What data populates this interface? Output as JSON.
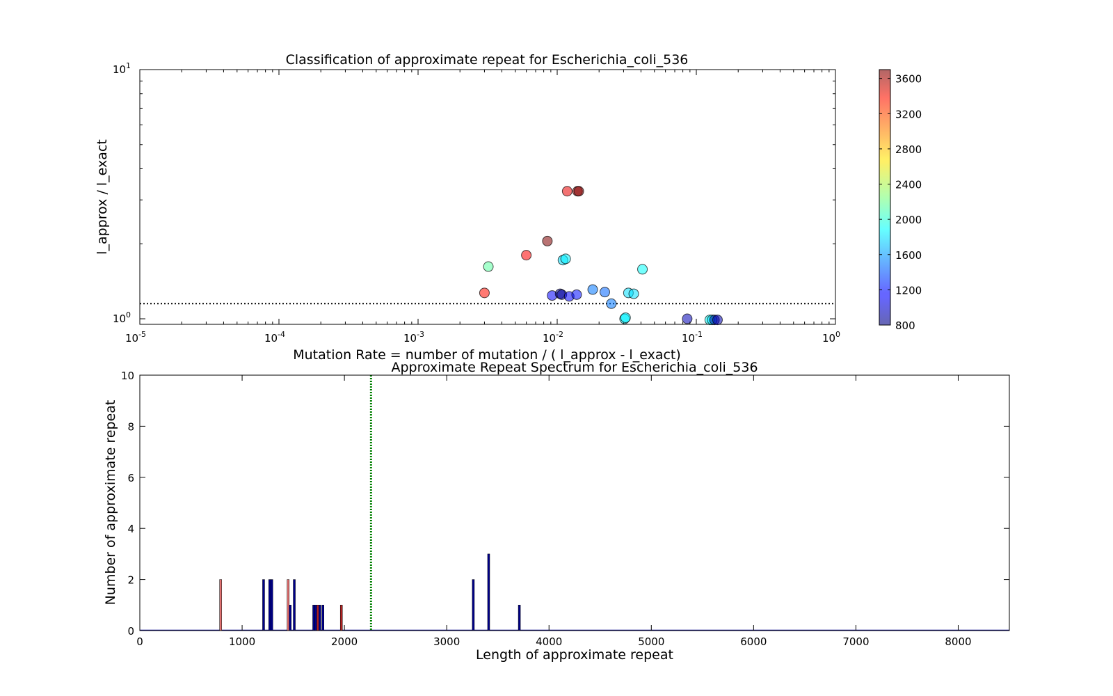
{
  "chart_data": [
    {
      "type": "scatter",
      "title": "Classification of approximate repeat for Escherichia_coli_536",
      "xlabel": "Mutation Rate = number of mutation / ( l_approx - l_exact)",
      "ylabel": "l_approx / l_exact",
      "x_scale": "log",
      "y_scale": "log",
      "xlim": [
        1e-05,
        1
      ],
      "ylim": [
        0.95,
        10
      ],
      "x_tick_labels": [
        {
          "base": "10",
          "exp": "-5"
        },
        {
          "base": "10",
          "exp": "-4"
        },
        {
          "base": "10",
          "exp": "-3"
        },
        {
          "base": "10",
          "exp": "-2"
        },
        {
          "base": "10",
          "exp": "-1"
        },
        {
          "base": "10",
          "exp": "0"
        }
      ],
      "y_tick_labels": [
        {
          "base": "10",
          "exp": "0"
        },
        {
          "base": "10",
          "exp": "1"
        }
      ],
      "threshold_y": 1.15,
      "grid": false,
      "colorbar": {
        "colormap": "jet",
        "min": 800,
        "max": 3700,
        "ticks": [
          "800",
          "1200",
          "1600",
          "2000",
          "2400",
          "2800",
          "3200",
          "3600"
        ]
      },
      "points": [
        {
          "x": 0.003,
          "y": 1.27,
          "c": 3300
        },
        {
          "x": 0.0032,
          "y": 1.62,
          "c": 2150
        },
        {
          "x": 0.006,
          "y": 1.8,
          "c": 3350
        },
        {
          "x": 0.0085,
          "y": 2.05,
          "c": 3700
        },
        {
          "x": 0.0092,
          "y": 1.24,
          "c": 1150
        },
        {
          "x": 0.0105,
          "y": 1.26,
          "c": 880
        },
        {
          "x": 0.0108,
          "y": 1.25,
          "c": 900
        },
        {
          "x": 0.011,
          "y": 1.72,
          "c": 1800
        },
        {
          "x": 0.0115,
          "y": 1.74,
          "c": 1850
        },
        {
          "x": 0.0118,
          "y": 3.25,
          "c": 3400
        },
        {
          "x": 0.0122,
          "y": 1.23,
          "c": 1150
        },
        {
          "x": 0.0138,
          "y": 1.25,
          "c": 1200
        },
        {
          "x": 0.014,
          "y": 3.25,
          "c": 3600
        },
        {
          "x": 0.0143,
          "y": 3.25,
          "c": 3700
        },
        {
          "x": 0.018,
          "y": 1.31,
          "c": 1500
        },
        {
          "x": 0.022,
          "y": 1.28,
          "c": 1450
        },
        {
          "x": 0.0245,
          "y": 1.15,
          "c": 1500
        },
        {
          "x": 0.0305,
          "y": 1.0,
          "c": 1850
        },
        {
          "x": 0.031,
          "y": 1.01,
          "c": 1850
        },
        {
          "x": 0.0325,
          "y": 1.27,
          "c": 1800
        },
        {
          "x": 0.0355,
          "y": 1.26,
          "c": 1800
        },
        {
          "x": 0.041,
          "y": 1.58,
          "c": 1900
        },
        {
          "x": 0.086,
          "y": 1.0,
          "c": 950
        },
        {
          "x": 0.125,
          "y": 0.99,
          "c": 1900
        },
        {
          "x": 0.13,
          "y": 0.99,
          "c": 1800
        },
        {
          "x": 0.135,
          "y": 0.99,
          "c": 850
        },
        {
          "x": 0.142,
          "y": 0.99,
          "c": 950
        }
      ]
    },
    {
      "type": "bar",
      "title": "Approximate Repeat Spectrum for Escherichia_coli_536",
      "xlabel": "Length of approximate repeat",
      "ylabel": "Number of approximate repeat",
      "xlim": [
        0,
        8500
      ],
      "ylim": [
        0,
        10
      ],
      "x_ticks": [
        0,
        1000,
        2000,
        3000,
        4000,
        5000,
        6000,
        7000,
        8000
      ],
      "y_ticks": [
        0,
        2,
        4,
        6,
        8,
        10
      ],
      "threshold_x": 2260,
      "grid": false,
      "bars": [
        {
          "x": 790,
          "count": 2,
          "color": "#e07070"
        },
        {
          "x": 1210,
          "count": 2,
          "color": "#00008b"
        },
        {
          "x": 1270,
          "count": 2,
          "color": "#00008b"
        },
        {
          "x": 1290,
          "count": 2,
          "color": "#00008b"
        },
        {
          "x": 1450,
          "count": 2,
          "color": "#e07070"
        },
        {
          "x": 1470,
          "count": 1,
          "color": "#00008b"
        },
        {
          "x": 1510,
          "count": 2,
          "color": "#00008b"
        },
        {
          "x": 1700,
          "count": 1,
          "color": "#00008b"
        },
        {
          "x": 1720,
          "count": 1,
          "color": "#00008b"
        },
        {
          "x": 1740,
          "count": 1,
          "color": "#b22222"
        },
        {
          "x": 1760,
          "count": 1,
          "color": "#00008b"
        },
        {
          "x": 1790,
          "count": 1,
          "color": "#00008b"
        },
        {
          "x": 1970,
          "count": 1,
          "color": "#b22222"
        },
        {
          "x": 3260,
          "count": 2,
          "color": "#00008b"
        },
        {
          "x": 3410,
          "count": 3,
          "color": "#00008b"
        },
        {
          "x": 3710,
          "count": 1,
          "color": "#00008b"
        }
      ]
    }
  ]
}
